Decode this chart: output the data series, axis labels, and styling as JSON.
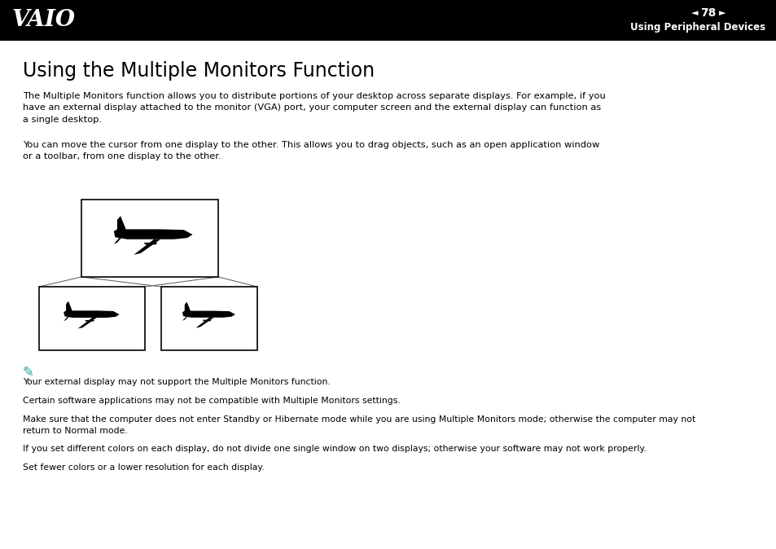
{
  "page_num": "78",
  "header_text": "Using Peripheral Devices",
  "title": "Using the Multiple Monitors Function",
  "para1": "The Multiple Monitors function allows you to distribute portions of your desktop across separate displays. For example, if you\nhave an external display attached to the monitor (VGA) port, your computer screen and the external display can function as\na single desktop.",
  "para2": "You can move the cursor from one display to the other. This allows you to drag objects, such as an open application window\nor a toolbar, from one display to the other.",
  "notes": [
    "Your external display may not support the Multiple Monitors function.",
    "Certain software applications may not be compatible with Multiple Monitors settings.",
    "Make sure that the computer does not enter Standby or Hibernate mode while you are using Multiple Monitors mode; otherwise the computer may not\nreturn to Normal mode.",
    "If you set different colors on each display, do not divide one single window on two displays; otherwise your software may not work properly.",
    "Set fewer colors or a lower resolution for each display."
  ],
  "bg_color": "#ffffff",
  "header_bg": "#000000",
  "header_fg": "#ffffff",
  "text_color": "#000000",
  "note_color": "#008080",
  "title_fontsize": 17,
  "body_fontsize": 8.2,
  "note_fontsize": 7.8,
  "header_fontsize": 8.5
}
